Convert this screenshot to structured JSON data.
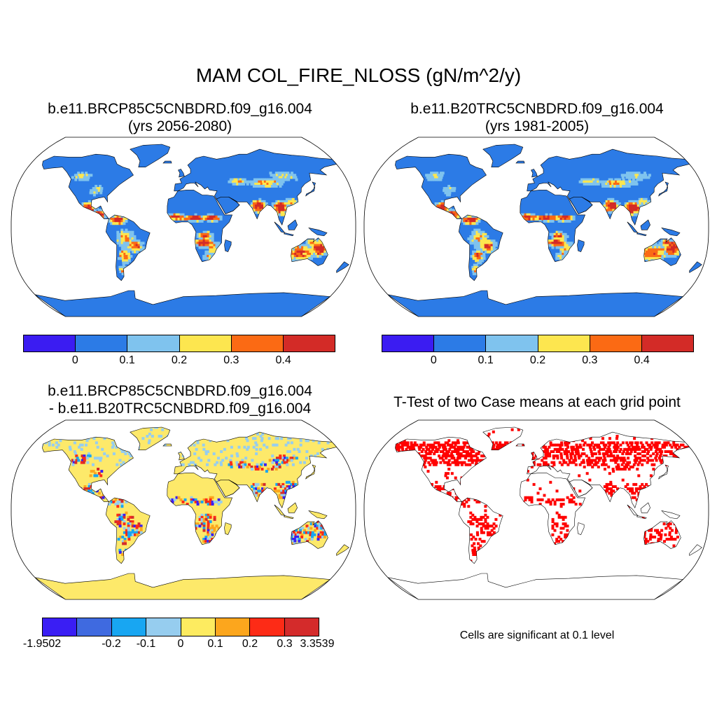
{
  "title": "MAM COL_FIRE_NLOSS (gN/m^2/y)",
  "panels": {
    "a": {
      "line1": "b.e11.BRCP85C5CNBDRD.f09_g16.004",
      "line2": "(yrs 2056-2080)"
    },
    "b": {
      "line1": "b.e11.B20TRC5CNBDRD.f09_g16.004",
      "line2": "(yrs 1981-2005)"
    },
    "c": {
      "line1": "b.e11.BRCP85C5CNBDRD.f09_g16.004",
      "line2": "- b.e11.B20TRC5CNBDRD.f09_g16.004"
    },
    "d": {
      "line1": "T-Test of two Case means at each grid point"
    }
  },
  "colorbars": {
    "abs": {
      "colors": [
        "#3b1cf2",
        "#2c7be6",
        "#7fc3ee",
        "#fde64f",
        "#fb6a14",
        "#d32b27"
      ],
      "labels": [
        "0",
        "0.1",
        "0.2",
        "0.3",
        "0.4"
      ]
    },
    "diff": {
      "colors": [
        "#3a1ef4",
        "#3f6ae0",
        "#18a6f2",
        "#96cdef",
        "#fdeb60",
        "#fca61d",
        "#fd2b16",
        "#d42b2b"
      ],
      "labels": [
        "-1.9502",
        "-0.2",
        "-0.1",
        "0",
        "0.1",
        "0.2",
        "0.3",
        "3.3539"
      ]
    }
  },
  "note": "Cells are significant at 0.1 level",
  "colors": {
    "land_abs": "#2c7be6",
    "land_diff": "#fde96a",
    "significant": "#ff0000"
  }
}
